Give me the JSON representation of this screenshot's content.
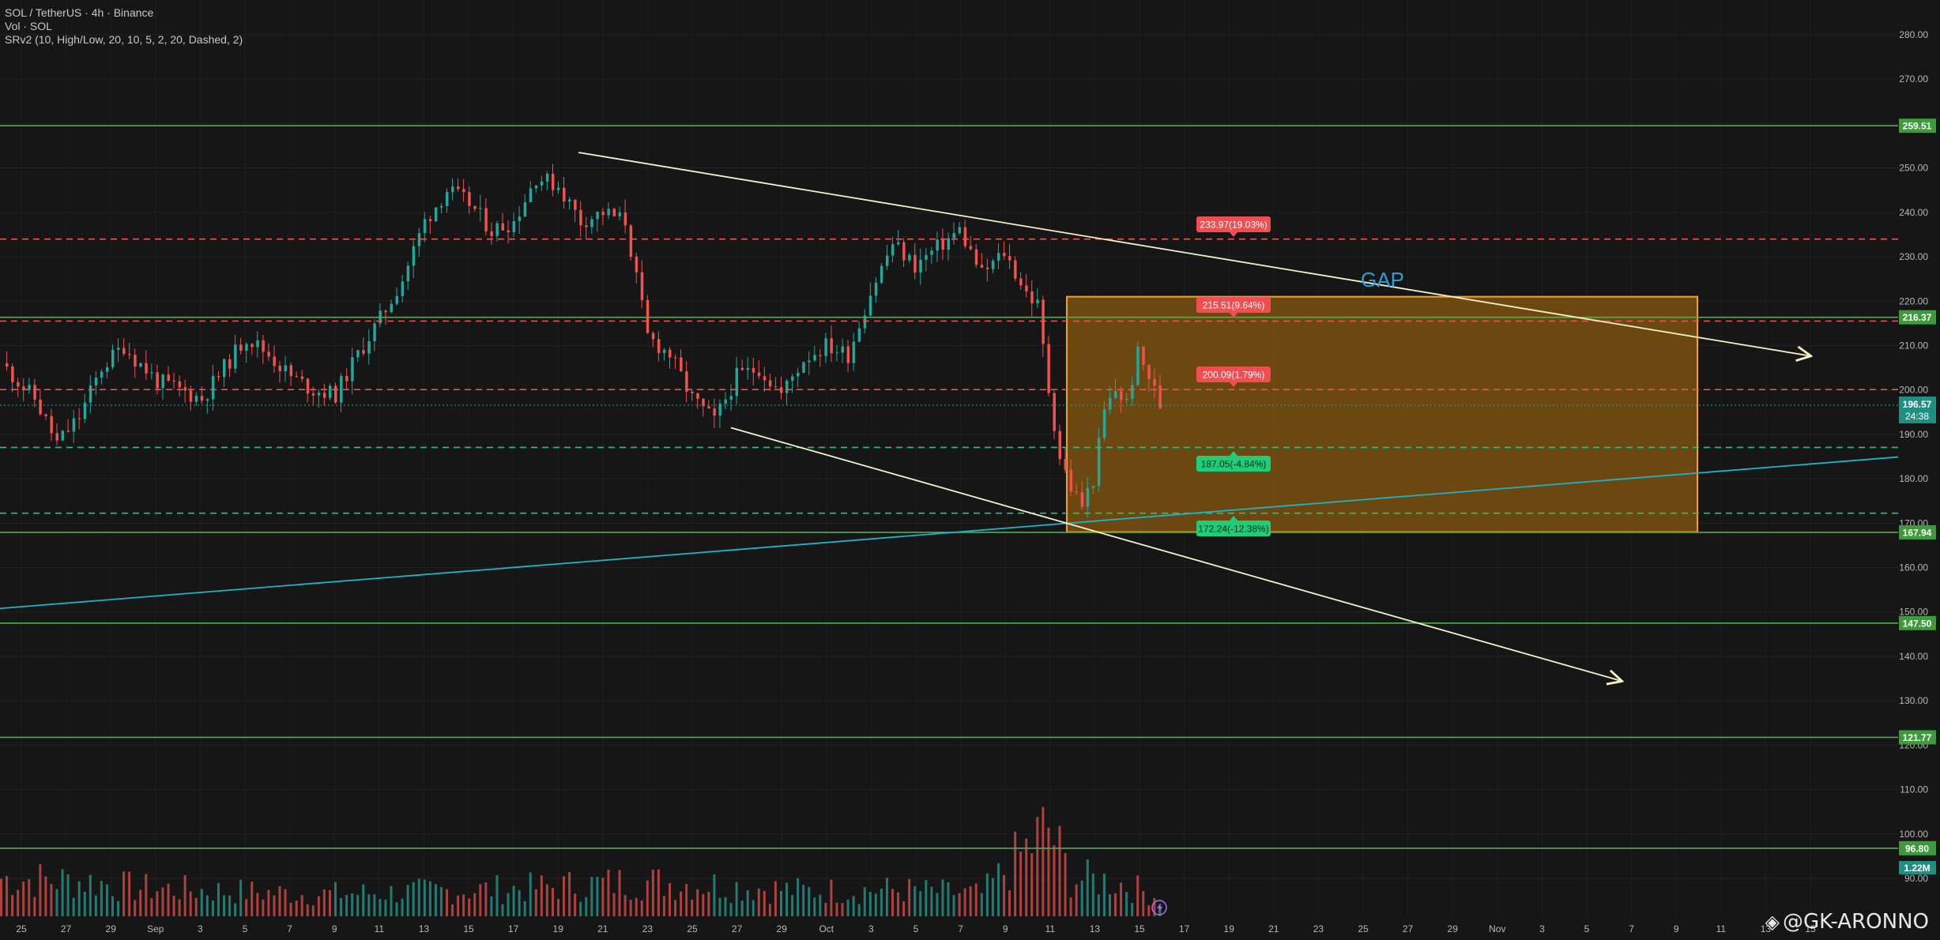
{
  "header": {
    "symbol_line": "SOL / TetherUS · 4h · Binance",
    "volume_line": "Vol · SOL",
    "indicator_line": "SRv2 (10, High/Low, 20, 10, 5, 2, 20, Dashed, 2)"
  },
  "watermark": {
    "text": "@GK-ARONNO"
  },
  "colors": {
    "background": "#161616",
    "up": "#26a69a",
    "down": "#ef5350",
    "support_line": "#4caf50",
    "resistance_dash": "#f05350",
    "support_dash": "#26c281",
    "trendline": "#f5f0c8",
    "channel_line": "#20b2c8",
    "gap_box_fill": "#8a5a10",
    "gap_box_border": "#f7a21b"
  },
  "chart_data": {
    "type": "candlestick",
    "y_axis": {
      "range": [
        85,
        285
      ],
      "ticks": [
        90,
        100,
        110,
        120,
        130,
        140,
        150,
        160,
        170,
        180,
        190,
        200,
        210,
        220,
        230,
        240,
        250,
        260,
        270,
        280
      ],
      "tick_labels": [
        "90.00",
        "100.00",
        "110.00",
        "120.00",
        "130.00",
        "140.00",
        "150.00",
        "160.00",
        "170.00",
        "180.00",
        "190.00",
        "200.00",
        "210.00",
        "220.00",
        "230.00",
        "240.00",
        "250.00",
        "260.00",
        "270.00",
        "280.00"
      ]
    },
    "x_axis": {
      "tick_labels": [
        "25",
        "27",
        "29",
        "Sep",
        "3",
        "5",
        "7",
        "9",
        "11",
        "13",
        "15",
        "17",
        "19",
        "21",
        "23",
        "25",
        "27",
        "29",
        "Oct",
        "3",
        "5",
        "7",
        "9",
        "11",
        "13",
        "15",
        "17",
        "19",
        "21",
        "23",
        "25",
        "27",
        "29",
        "Nov",
        "3",
        "5",
        "7",
        "9",
        "11",
        "13",
        "15"
      ]
    },
    "price_levels": [
      {
        "value": 259.51,
        "label": "259.51",
        "style": "solid"
      },
      {
        "value": 216.37,
        "label": "216.37",
        "style": "solid"
      },
      {
        "value": 167.94,
        "label": "167.94",
        "style": "solid"
      },
      {
        "value": 147.5,
        "label": "147.50",
        "style": "solid"
      },
      {
        "value": 121.77,
        "label": "121.77",
        "style": "solid"
      },
      {
        "value": 96.8,
        "label": "96.80",
        "style": "solid"
      }
    ],
    "current_price": {
      "value": 196.57,
      "label": "196.57",
      "countdown": "24:38"
    },
    "volume_badge": "1.22M",
    "target_labels": [
      {
        "value": 233.97,
        "text": "233.97(19.03%)",
        "kind": "resistance"
      },
      {
        "value": 215.51,
        "text": "215.51(9.64%)",
        "kind": "resistance"
      },
      {
        "value": 200.09,
        "text": "200.09(1.79%)",
        "kind": "resistance"
      },
      {
        "value": 187.05,
        "text": "187.05(-4.84%)",
        "kind": "support"
      },
      {
        "value": 172.24,
        "text": "172.24(-12.38%)",
        "kind": "support"
      }
    ],
    "annotations": [
      {
        "text": "GAP"
      }
    ],
    "gap_box": {
      "top": 221,
      "bottom": 168
    },
    "close_points": [
      [
        0,
        206
      ],
      [
        3,
        198
      ],
      [
        5,
        188
      ],
      [
        7,
        194
      ],
      [
        9,
        205
      ],
      [
        11,
        210
      ],
      [
        12,
        207
      ],
      [
        14,
        202
      ],
      [
        16,
        200
      ],
      [
        18,
        198
      ],
      [
        20,
        205
      ],
      [
        22,
        212
      ],
      [
        24,
        208
      ],
      [
        26,
        203
      ],
      [
        28,
        200
      ],
      [
        30,
        199
      ],
      [
        32,
        208
      ],
      [
        34,
        216
      ],
      [
        36,
        225
      ],
      [
        38,
        238
      ],
      [
        40,
        245
      ],
      [
        42,
        242
      ],
      [
        44,
        236
      ],
      [
        46,
        238
      ],
      [
        48,
        248
      ],
      [
        50,
        246
      ],
      [
        52,
        238
      ],
      [
        54,
        240
      ],
      [
        56,
        238
      ],
      [
        57,
        225
      ],
      [
        58,
        212
      ],
      [
        60,
        208
      ],
      [
        62,
        198
      ],
      [
        64,
        193
      ],
      [
        66,
        203
      ],
      [
        68,
        205
      ],
      [
        70,
        199
      ],
      [
        72,
        207
      ],
      [
        74,
        210
      ],
      [
        76,
        208
      ],
      [
        78,
        222
      ],
      [
        80,
        233
      ],
      [
        82,
        228
      ],
      [
        84,
        232
      ],
      [
        86,
        236
      ],
      [
        88,
        226
      ],
      [
        90,
        231
      ],
      [
        92,
        222
      ],
      [
        93,
        219
      ],
      [
        94,
        200
      ],
      [
        95,
        185
      ],
      [
        96,
        178
      ],
      [
        97,
        174
      ],
      [
        98,
        180
      ],
      [
        99,
        195
      ],
      [
        100,
        200
      ],
      [
        101,
        197
      ],
      [
        102,
        208
      ],
      [
        103,
        203
      ],
      [
        104,
        196.57
      ]
    ],
    "volume_points": [
      [
        0,
        60
      ],
      [
        8,
        55
      ],
      [
        12,
        45
      ],
      [
        20,
        40
      ],
      [
        28,
        35
      ],
      [
        36,
        38
      ],
      [
        48,
        45
      ],
      [
        57,
        55
      ],
      [
        64,
        50
      ],
      [
        72,
        40
      ],
      [
        80,
        42
      ],
      [
        88,
        35
      ],
      [
        94,
        140
      ],
      [
        96,
        60
      ],
      [
        100,
        55
      ],
      [
        104,
        30
      ]
    ]
  }
}
